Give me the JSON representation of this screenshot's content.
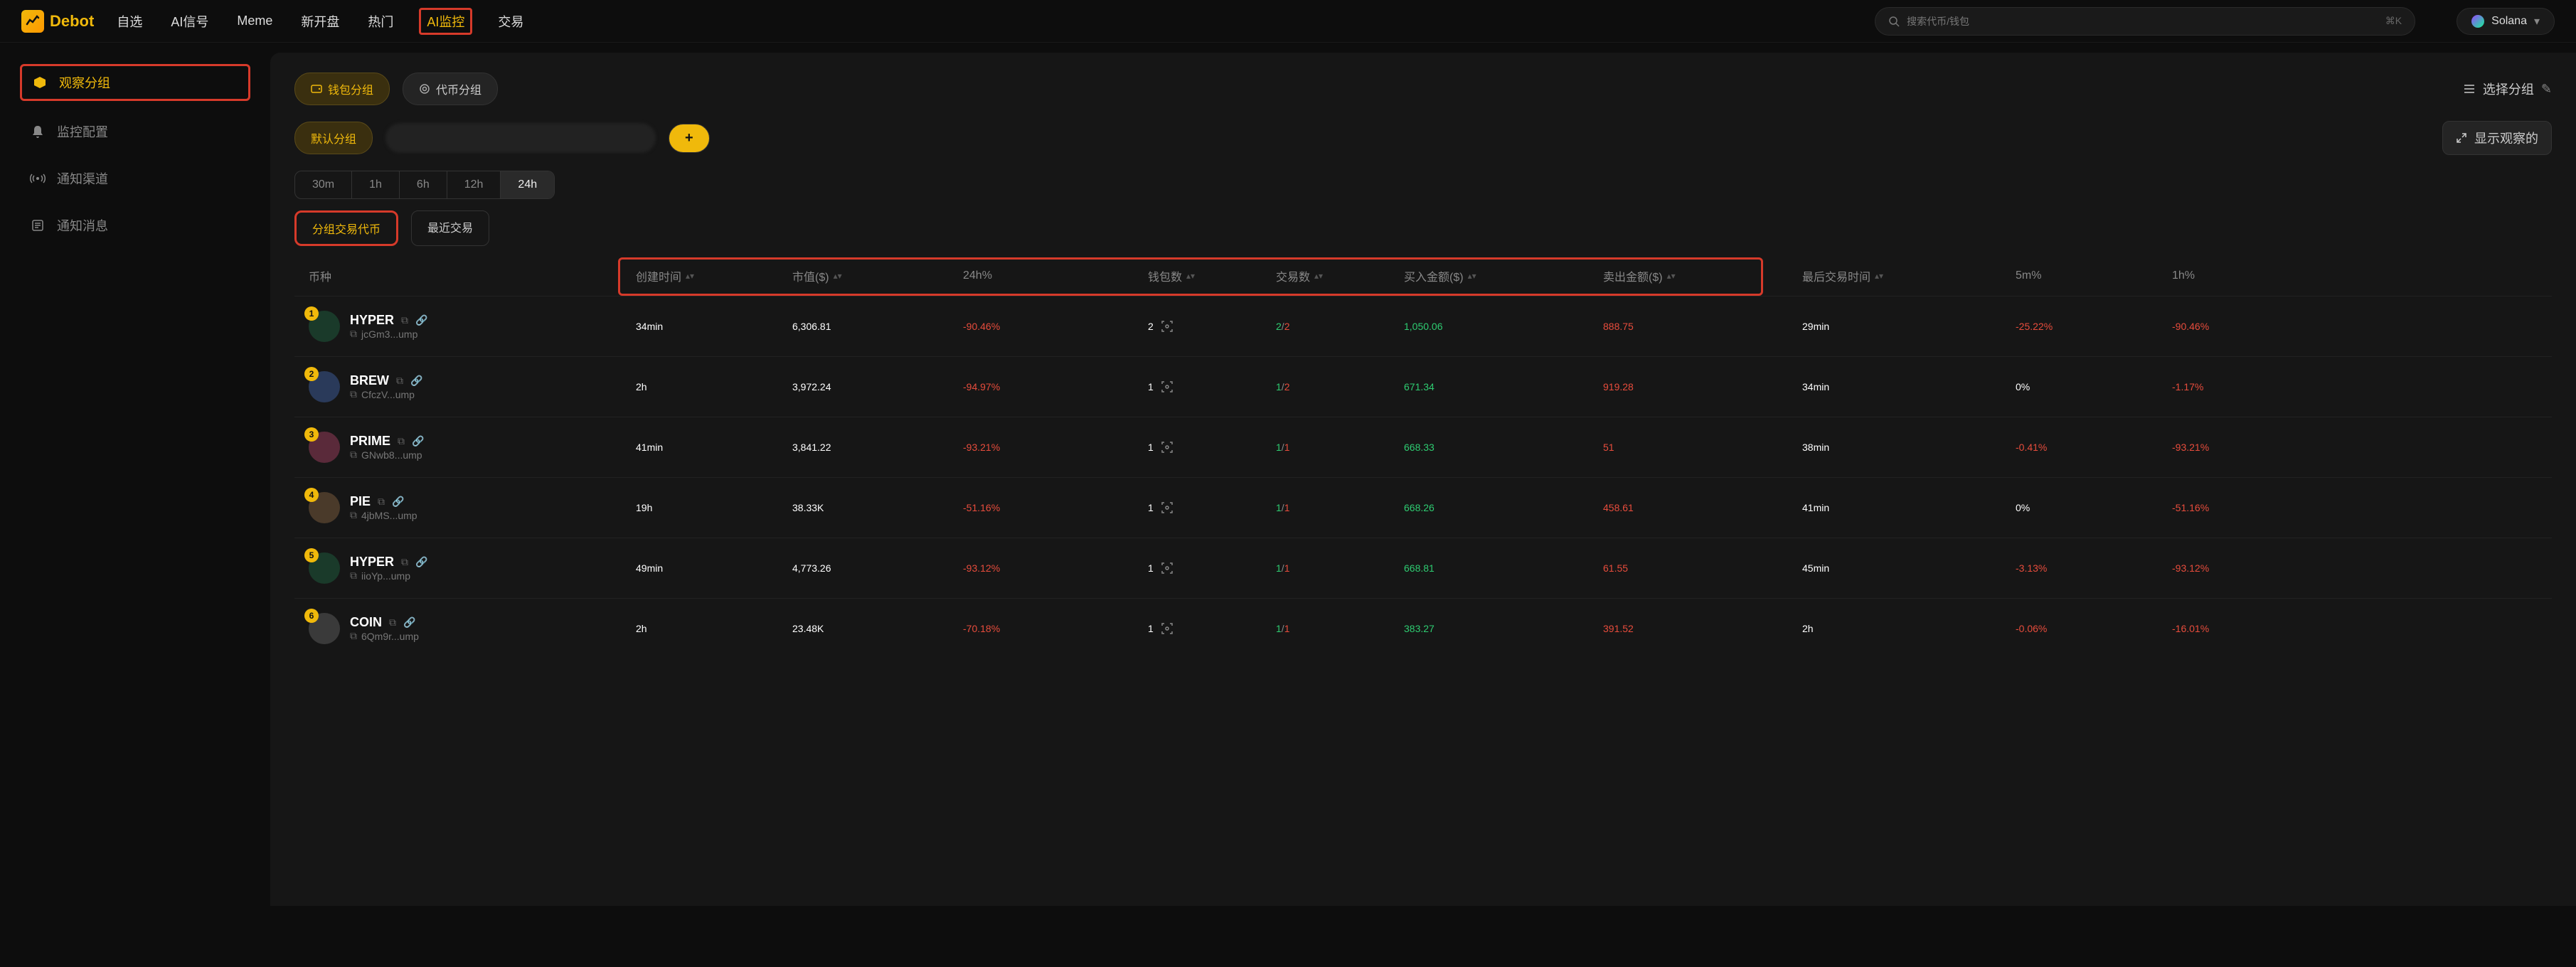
{
  "brand": "Debot",
  "nav": {
    "items": [
      "自选",
      "AI信号",
      "Meme",
      "新开盘",
      "热门",
      "AI监控",
      "交易"
    ],
    "highlight_index": 5
  },
  "search": {
    "placeholder": "搜索代币/钱包",
    "shortcut": "⌘K"
  },
  "chain": {
    "name": "Solana"
  },
  "sidebar": {
    "items": [
      {
        "label": "观察分组",
        "active": true
      },
      {
        "label": "监控配置",
        "active": false
      },
      {
        "label": "通知渠道",
        "active": false
      },
      {
        "label": "通知消息",
        "active": false
      }
    ]
  },
  "group_pills": {
    "wallet_group": "钱包分组",
    "token_group": "代币分组",
    "default_group": "默认分组"
  },
  "right_actions": {
    "select_group": "选择分组",
    "show_watch": "显示观察的"
  },
  "time_tabs": [
    "30m",
    "1h",
    "6h",
    "12h",
    "24h"
  ],
  "time_active_index": 4,
  "sub_tabs": {
    "group_tokens": "分组交易代币",
    "recent_tx": "最近交易"
  },
  "columns": {
    "coin": "币种",
    "created": "创建时间",
    "mcap": "市值($)",
    "h24": "24h%",
    "wallets": "钱包数",
    "tx": "交易数",
    "buyamt": "买入金额($)",
    "sellamt": "卖出金额($)",
    "lasttx": "最后交易时间",
    "m5": "5m%",
    "h1": "1h%"
  },
  "rows": [
    {
      "rank": "1",
      "name": "HYPER",
      "addr": "jcGm3...ump",
      "created": "34min",
      "mcap": "6,306.81",
      "h24": "-90.46%",
      "wallets": "2",
      "buy": "2",
      "sell": "2",
      "buyamt": "1,050.06",
      "sellamt": "888.75",
      "lasttx": "29min",
      "m5": "-25.22%",
      "h1": "-90.46%",
      "m5_neg": true,
      "h1_neg": true,
      "icon_bg": "#1a3a2a"
    },
    {
      "rank": "2",
      "name": "BREW",
      "addr": "CfczV...ump",
      "created": "2h",
      "mcap": "3,972.24",
      "h24": "-94.97%",
      "wallets": "1",
      "buy": "1",
      "sell": "2",
      "buyamt": "671.34",
      "sellamt": "919.28",
      "lasttx": "34min",
      "m5": "0%",
      "h1": "-1.17%",
      "m5_neg": false,
      "h1_neg": true,
      "icon_bg": "#2a3a5a"
    },
    {
      "rank": "3",
      "name": "PRIME",
      "addr": "GNwb8...ump",
      "created": "41min",
      "mcap": "3,841.22",
      "h24": "-93.21%",
      "wallets": "1",
      "buy": "1",
      "sell": "1",
      "buyamt": "668.33",
      "sellamt": "51",
      "lasttx": "38min",
      "m5": "-0.41%",
      "h1": "-93.21%",
      "m5_neg": true,
      "h1_neg": true,
      "icon_bg": "#5a2a3a"
    },
    {
      "rank": "4",
      "name": "PIE",
      "addr": "4jbMS...ump",
      "created": "19h",
      "mcap": "38.33K",
      "h24": "-51.16%",
      "wallets": "1",
      "buy": "1",
      "sell": "1",
      "buyamt": "668.26",
      "sellamt": "458.61",
      "lasttx": "41min",
      "m5": "0%",
      "h1": "-51.16%",
      "m5_neg": false,
      "h1_neg": true,
      "icon_bg": "#4a3a2a"
    },
    {
      "rank": "5",
      "name": "HYPER",
      "addr": "iioYp...ump",
      "created": "49min",
      "mcap": "4,773.26",
      "h24": "-93.12%",
      "wallets": "1",
      "buy": "1",
      "sell": "1",
      "buyamt": "668.81",
      "sellamt": "61.55",
      "lasttx": "45min",
      "m5": "-3.13%",
      "h1": "-93.12%",
      "m5_neg": true,
      "h1_neg": true,
      "icon_bg": "#1a3a2a"
    },
    {
      "rank": "6",
      "name": "COIN",
      "addr": "6Qm9r...ump",
      "created": "2h",
      "mcap": "23.48K",
      "h24": "-70.18%",
      "wallets": "1",
      "buy": "1",
      "sell": "1",
      "buyamt": "383.27",
      "sellamt": "391.52",
      "lasttx": "2h",
      "m5": "-0.06%",
      "h1": "-16.01%",
      "m5_neg": true,
      "h1_neg": true,
      "icon_bg": "#3a3a3a"
    }
  ],
  "colors": {
    "pos": "#2ecc71",
    "neg": "#e74c3c",
    "gold": "#f0b90b",
    "highlight_border": "#d63a2a"
  }
}
